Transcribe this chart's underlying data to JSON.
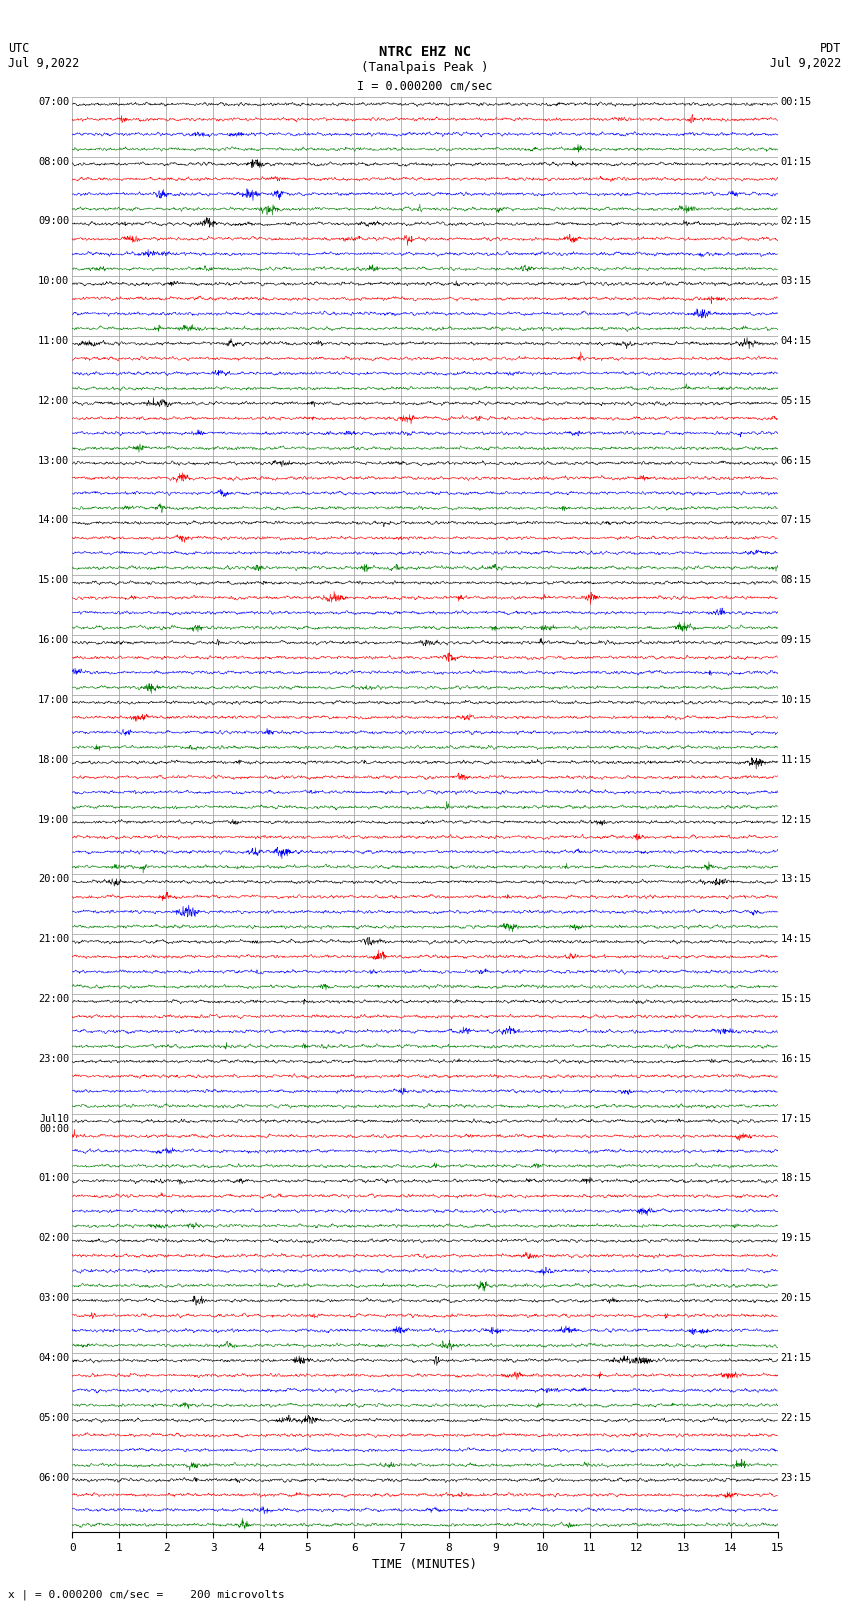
{
  "title_line1": "NTRC EHZ NC",
  "title_line2": "(Tanalpais Peak )",
  "scale_label": "I = 0.000200 cm/sec",
  "left_label": "UTC\nJul 9,2022",
  "right_label": "PDT\nJul 9,2022",
  "bottom_label": "x | = 0.000200 cm/sec =    200 microvolts",
  "xlabel": "TIME (MINUTES)",
  "left_times": [
    "07:00",
    "08:00",
    "09:00",
    "10:00",
    "11:00",
    "12:00",
    "13:00",
    "14:00",
    "15:00",
    "16:00",
    "17:00",
    "18:00",
    "19:00",
    "20:00",
    "21:00",
    "22:00",
    "23:00",
    "Jul10\n00:00",
    "01:00",
    "02:00",
    "03:00",
    "04:00",
    "05:00",
    "06:00"
  ],
  "right_times": [
    "00:15",
    "01:15",
    "02:15",
    "03:15",
    "04:15",
    "05:15",
    "06:15",
    "07:15",
    "08:15",
    "09:15",
    "10:15",
    "11:15",
    "12:15",
    "13:15",
    "14:15",
    "15:15",
    "16:15",
    "17:15",
    "18:15",
    "19:15",
    "20:15",
    "21:15",
    "22:15",
    "23:15"
  ],
  "num_hour_blocks": 24,
  "traces_per_block": 4,
  "colors": [
    "black",
    "red",
    "blue",
    "green"
  ],
  "bg_color": "white",
  "grid_color": "#999999",
  "xmin": 0,
  "xmax": 15,
  "xticks": [
    0,
    1,
    2,
    3,
    4,
    5,
    6,
    7,
    8,
    9,
    10,
    11,
    12,
    13,
    14,
    15
  ],
  "noise_amp": 0.035,
  "burst_prob": 0.25
}
